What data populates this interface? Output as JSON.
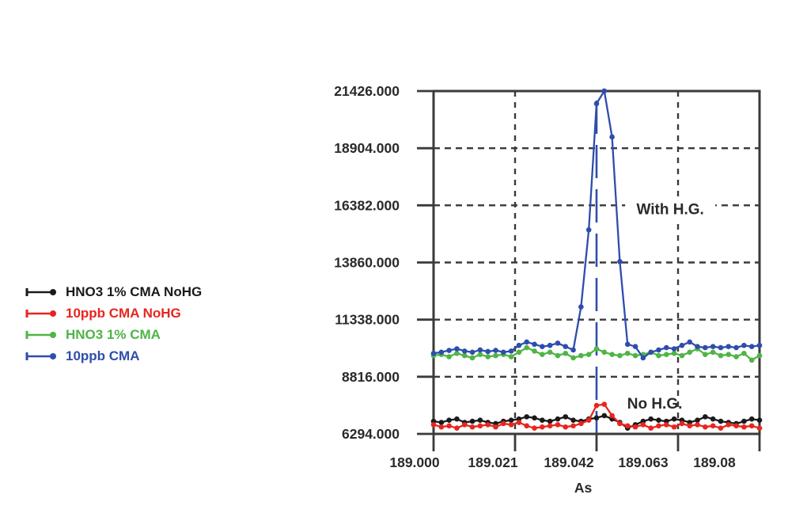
{
  "figure": {
    "background": "#ffffff",
    "frame_color": "#3a3a3a",
    "text_color": "#2a2a2a"
  },
  "chart_data": {
    "type": "line",
    "title": "",
    "xlabel": "As",
    "ylabel": "",
    "xlim": [
      189.0,
      189.084
    ],
    "ylim": [
      6294,
      21426
    ],
    "x_ticks": [
      {
        "value": 189.0,
        "label": "189.000"
      },
      {
        "value": 189.021,
        "label": "189.021"
      },
      {
        "value": 189.042,
        "label": "189.042"
      },
      {
        "value": 189.063,
        "label": "189.063"
      },
      {
        "value": 189.084,
        "label": "189.08"
      }
    ],
    "y_ticks": [
      {
        "value": 21426,
        "label": "21426.000"
      },
      {
        "value": 18904,
        "label": "18904.000"
      },
      {
        "value": 16382,
        "label": "16382.000"
      },
      {
        "value": 13860,
        "label": "13860.000"
      },
      {
        "value": 11338,
        "label": "11338.000"
      },
      {
        "value": 8816,
        "label": "8816.000"
      },
      {
        "value": 6294,
        "label": "6294.000"
      }
    ],
    "grid": {
      "h_dashed_at": [
        18904,
        16382,
        13860,
        11338,
        8816
      ],
      "v_dashed_at": [
        189.021,
        189.063
      ],
      "style": "dashed"
    },
    "peak_marker": {
      "wavelength": 189.042,
      "color": "#2e4dad"
    },
    "x_start": 189.0,
    "x_step": 0.002,
    "series": [
      {
        "name": "HNO3 1% CMA NoHG",
        "color": "#1a1a1a",
        "values": [
          6850,
          6800,
          6900,
          6950,
          6800,
          6850,
          6900,
          6800,
          6750,
          6850,
          6900,
          6950,
          7050,
          7000,
          6900,
          6850,
          6950,
          7050,
          6900,
          6850,
          6950,
          7000,
          7100,
          6950,
          6800,
          6550,
          6700,
          6850,
          6950,
          6900,
          6850,
          6950,
          6900,
          6800,
          6900,
          7050,
          6950,
          6850,
          6800,
          6750,
          6850,
          6950,
          6900
        ]
      },
      {
        "name": "10ppb CMA NoHG",
        "color": "#e8251f",
        "values": [
          6700,
          6600,
          6650,
          6550,
          6700,
          6600,
          6650,
          6700,
          6600,
          6750,
          6700,
          6800,
          6650,
          6550,
          6600,
          6650,
          6700,
          6600,
          6650,
          6750,
          6900,
          7550,
          7600,
          7100,
          6750,
          6650,
          6600,
          6700,
          6550,
          6650,
          6700,
          6600,
          6750,
          6650,
          6700,
          6600,
          6650,
          6550,
          6700,
          6650,
          6600,
          6650,
          6550
        ]
      },
      {
        "name": "HNO3 1% CMA",
        "color": "#50b446",
        "values": [
          9750,
          9800,
          9700,
          9850,
          9750,
          9650,
          9800,
          9700,
          9750,
          9800,
          9700,
          9900,
          10100,
          9950,
          9800,
          9900,
          9750,
          9850,
          9650,
          9750,
          9800,
          10050,
          9900,
          9800,
          9750,
          9850,
          9750,
          9800,
          9900,
          9750,
          9800,
          9850,
          9750,
          9900,
          10050,
          9800,
          9900,
          9750,
          9800,
          9700,
          9850,
          9550,
          9750
        ]
      },
      {
        "name": "10ppb CMA",
        "color": "#2e4dad",
        "values": [
          9850,
          9900,
          9980,
          10050,
          9950,
          9900,
          10000,
          9930,
          9980,
          9900,
          9950,
          10200,
          10350,
          10250,
          10150,
          10200,
          10300,
          10150,
          10000,
          11900,
          15300,
          20870,
          21430,
          19400,
          13900,
          10250,
          10150,
          9650,
          9900,
          10000,
          10100,
          10050,
          10200,
          10350,
          10150,
          10100,
          10150,
          10100,
          10150,
          10100,
          10200,
          10150,
          10200
        ]
      }
    ],
    "annotations": [
      {
        "text": "With H.G.",
        "x": 189.061,
        "y": 16230,
        "bg": true
      },
      {
        "text": "No H.G.",
        "x": 189.057,
        "y": 7650,
        "bg": false
      }
    ],
    "legend": {
      "position": "left",
      "items": [
        "HNO3 1% CMA NoHG",
        "10ppb CMA NoHG",
        "HNO3 1% CMA",
        "10ppb CMA"
      ]
    }
  }
}
